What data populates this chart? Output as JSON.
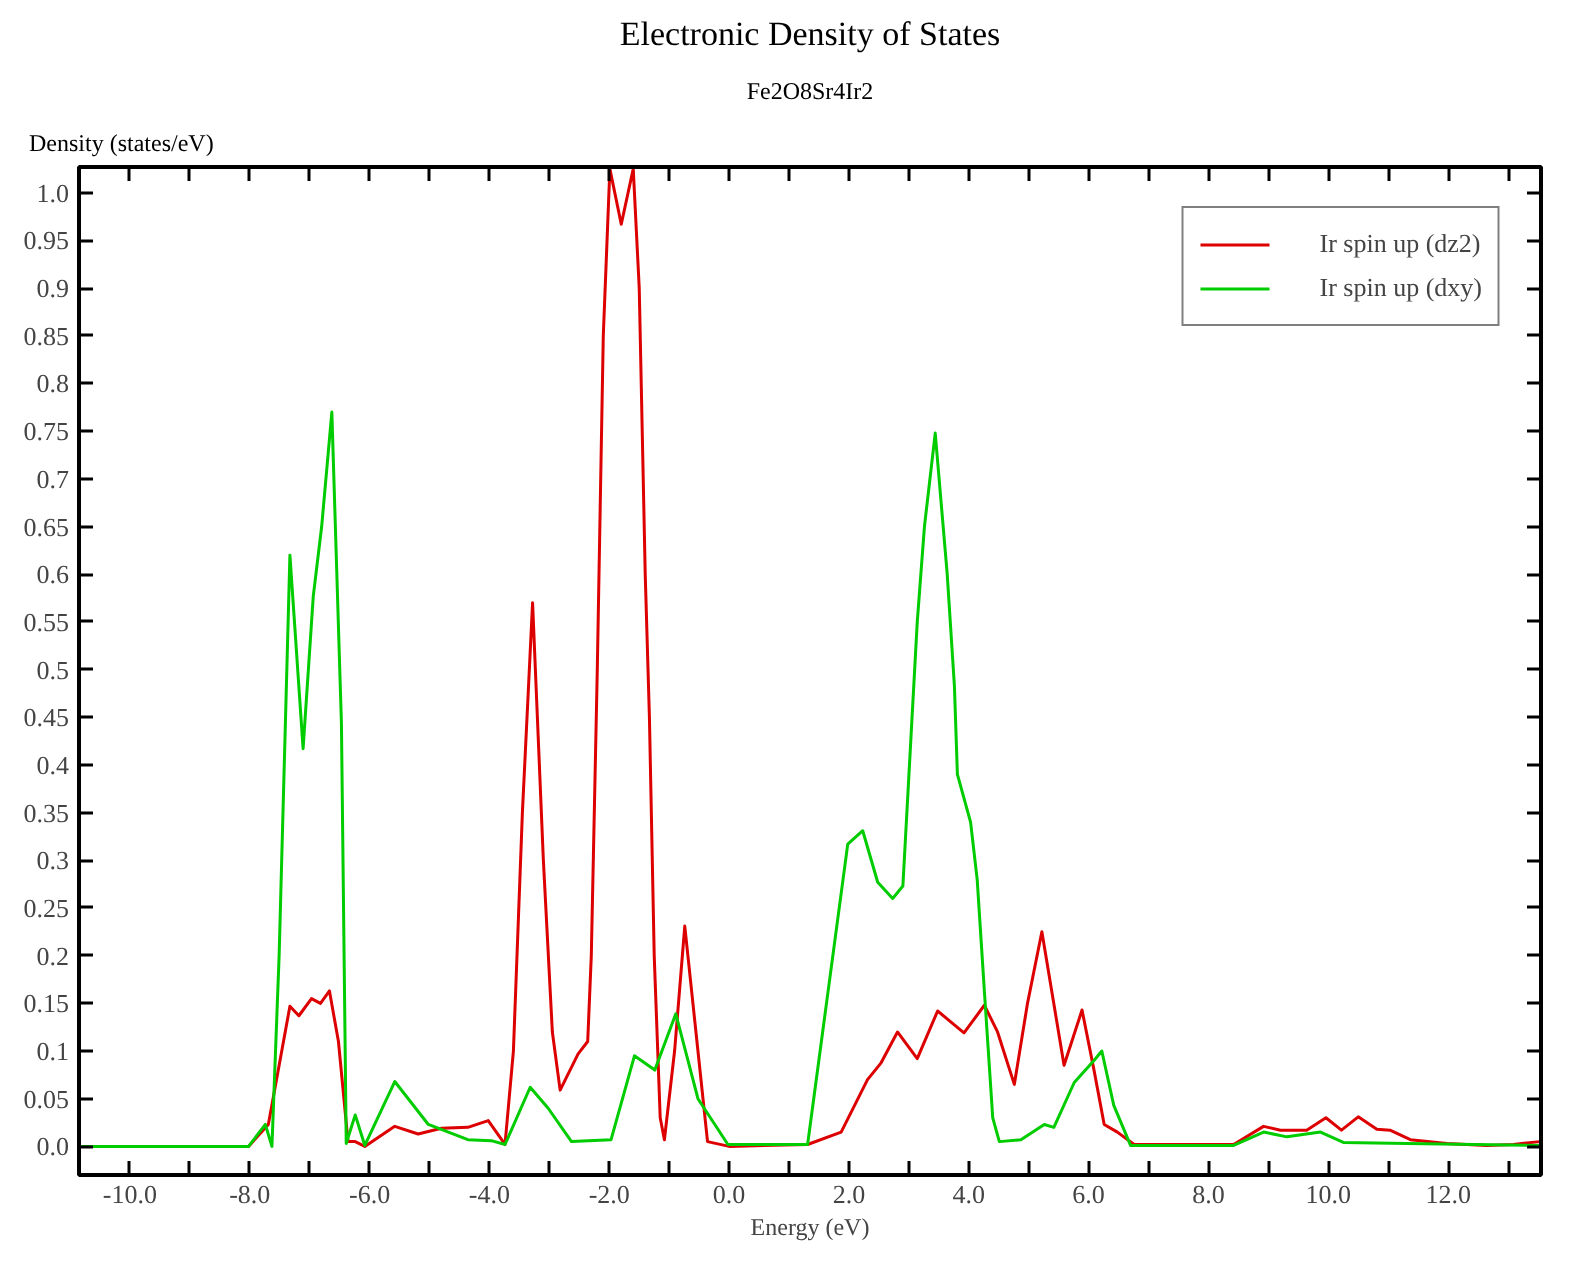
{
  "chart_data": {
    "type": "line",
    "title": "Electronic Density of States",
    "subtitle": "Fe2O8Sr4Ir2",
    "xlabel": "Energy (eV)",
    "ylabel": "Density (states/eV)",
    "xlim": [
      -10.85,
      13.55
    ],
    "ylim": [
      -0.03,
      1.027
    ],
    "xticks": [
      {
        "value": -10,
        "label": "-10.0"
      },
      {
        "value": -9,
        "label": null
      },
      {
        "value": -8,
        "label": "-8.0"
      },
      {
        "value": -7,
        "label": null
      },
      {
        "value": -6,
        "label": "-6.0"
      },
      {
        "value": -5,
        "label": null
      },
      {
        "value": -4,
        "label": "-4.0"
      },
      {
        "value": -3,
        "label": null
      },
      {
        "value": -2,
        "label": "-2.0"
      },
      {
        "value": -1,
        "label": null
      },
      {
        "value": 0,
        "label": "0.0"
      },
      {
        "value": 1,
        "label": null
      },
      {
        "value": 2,
        "label": "2.0"
      },
      {
        "value": 3,
        "label": null
      },
      {
        "value": 4,
        "label": "4.0"
      },
      {
        "value": 5,
        "label": null
      },
      {
        "value": 6,
        "label": "6.0"
      },
      {
        "value": 7,
        "label": null
      },
      {
        "value": 8,
        "label": "8.0"
      },
      {
        "value": 9,
        "label": null
      },
      {
        "value": 10,
        "label": "10.0"
      },
      {
        "value": 11,
        "label": null
      },
      {
        "value": 12,
        "label": "12.0"
      },
      {
        "value": 13,
        "label": null
      }
    ],
    "yticks": [
      {
        "value": 0,
        "label": "0.0"
      },
      0.05,
      0.1,
      0.15,
      0.2,
      0.25,
      0.3,
      0.35,
      0.4,
      0.45,
      0.5,
      0.55,
      0.6,
      0.65,
      0.7,
      0.75,
      0.8,
      0.85,
      0.9,
      0.95,
      {
        "value": 1,
        "label": "1.0"
      }
    ],
    "grid": false,
    "legend": "top right",
    "line_style": "solid",
    "series": [
      {
        "name": "Ir spin up (dz2)",
        "color": "#dd0000",
        "x": [
          -10.83,
          -8.02,
          -7.69,
          -7.33,
          -7.18,
          -6.97,
          -6.82,
          -6.67,
          -6.52,
          -6.36,
          -6.24,
          -6.08,
          -5.58,
          -5.19,
          -4.8,
          -4.36,
          -4.02,
          -3.74,
          -3.6,
          -3.45,
          -3.28,
          -3.1,
          -2.95,
          -2.82,
          -2.52,
          -2.36,
          -2.3,
          -2.2,
          -2.1,
          -1.99,
          -1.8,
          -1.6,
          -1.5,
          -1.4,
          -1.33,
          -1.25,
          -1.15,
          -1.08,
          -0.91,
          -0.74,
          -0.52,
          -0.36,
          0.0,
          1.31,
          1.87,
          2.31,
          2.53,
          2.81,
          3.14,
          3.48,
          3.92,
          4.26,
          4.48,
          4.76,
          4.98,
          5.22,
          5.59,
          5.89,
          6.09,
          6.26,
          6.48,
          6.76,
          7.42,
          8.42,
          8.92,
          9.2,
          9.64,
          9.96,
          10.22,
          10.5,
          10.81,
          11.03,
          11.37,
          11.98,
          12.64,
          13.09,
          13.53
        ],
        "values": [
          0.0,
          0.0,
          0.023,
          0.147,
          0.137,
          0.155,
          0.15,
          0.163,
          0.11,
          0.005,
          0.005,
          0.0,
          0.021,
          0.013,
          0.019,
          0.02,
          0.027,
          0.002,
          0.1,
          0.35,
          0.57,
          0.3,
          0.12,
          0.059,
          0.097,
          0.11,
          0.2,
          0.5,
          0.85,
          1.025,
          0.967,
          1.025,
          0.9,
          0.6,
          0.45,
          0.2,
          0.03,
          0.007,
          0.1,
          0.231,
          0.1,
          0.005,
          0.0,
          0.002,
          0.015,
          0.07,
          0.087,
          0.12,
          0.092,
          0.142,
          0.119,
          0.148,
          0.12,
          0.065,
          0.15,
          0.225,
          0.085,
          0.143,
          0.08,
          0.023,
          0.015,
          0.002,
          0.002,
          0.002,
          0.021,
          0.017,
          0.017,
          0.03,
          0.017,
          0.031,
          0.018,
          0.017,
          0.007,
          0.003,
          0.001,
          0.002,
          0.005
        ]
      },
      {
        "name": "Ir spin up (dxy)",
        "color": "#00cc00",
        "x": [
          -10.83,
          -8.02,
          -7.74,
          -7.63,
          -7.51,
          -7.33,
          -7.11,
          -6.94,
          -6.8,
          -6.63,
          -6.47,
          -6.39,
          -6.24,
          -6.08,
          -5.58,
          -5.02,
          -4.36,
          -3.97,
          -3.74,
          -3.32,
          -3.02,
          -2.63,
          -1.97,
          -1.58,
          -1.24,
          -0.89,
          -0.52,
          -0.02,
          1.2,
          1.31,
          1.64,
          1.98,
          2.23,
          2.48,
          2.73,
          2.9,
          3.14,
          3.26,
          3.44,
          3.64,
          3.76,
          3.81,
          4.03,
          4.14,
          4.26,
          4.4,
          4.51,
          4.87,
          5.26,
          5.42,
          5.76,
          6.09,
          6.22,
          6.42,
          6.7,
          8.42,
          8.92,
          9.31,
          9.87,
          10.26,
          11.31,
          13.53
        ],
        "values": [
          0.0,
          0.0,
          0.023,
          0.0,
          0.2,
          0.62,
          0.417,
          0.577,
          0.65,
          0.77,
          0.443,
          0.003,
          0.033,
          0.001,
          0.068,
          0.023,
          0.007,
          0.006,
          0.002,
          0.062,
          0.04,
          0.005,
          0.007,
          0.095,
          0.08,
          0.139,
          0.05,
          0.002,
          0.002,
          0.002,
          0.157,
          0.317,
          0.331,
          0.277,
          0.26,
          0.273,
          0.55,
          0.65,
          0.748,
          0.6,
          0.483,
          0.39,
          0.34,
          0.28,
          0.163,
          0.03,
          0.005,
          0.007,
          0.023,
          0.02,
          0.067,
          0.09,
          0.1,
          0.043,
          0.001,
          0.001,
          0.015,
          0.01,
          0.015,
          0.004,
          0.003,
          0.001
        ]
      }
    ]
  }
}
